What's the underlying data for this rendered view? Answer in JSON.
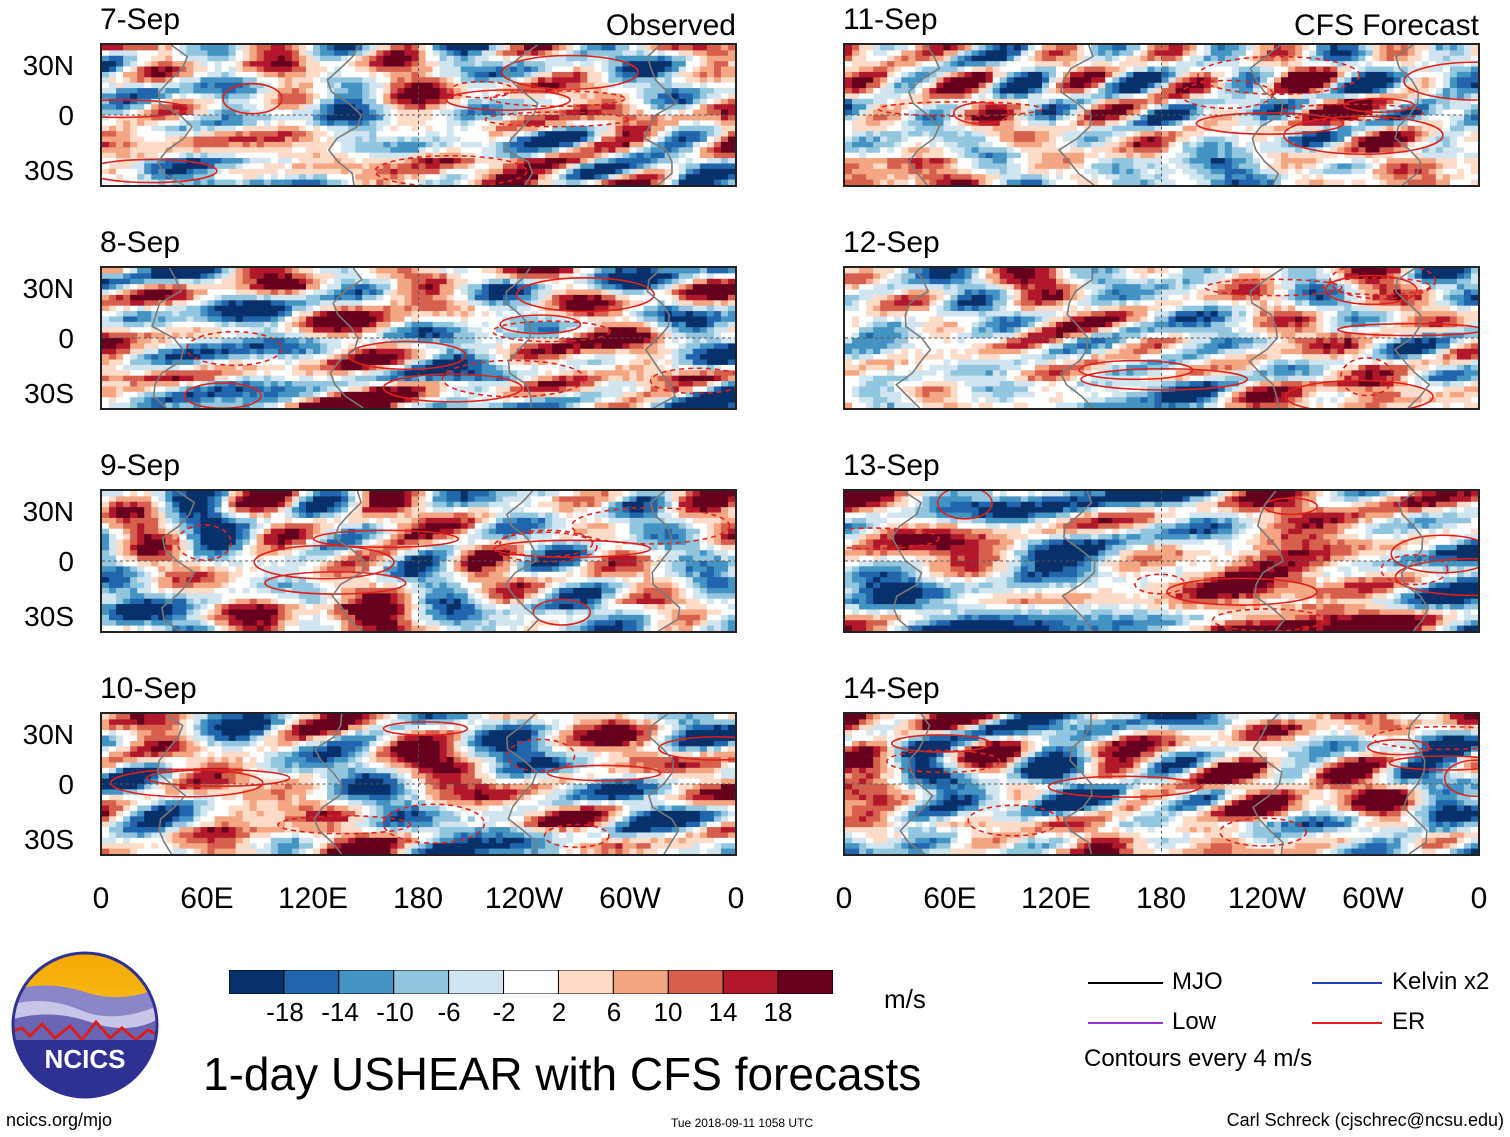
{
  "chart_data": {
    "type": "heatmap",
    "title": "1-day USHEAR with CFS forecasts",
    "variable": "USHEAR",
    "units": "m/s",
    "observed_label": "Observed",
    "forecast_label": "CFS Forecast",
    "lat_ticks": [
      "30N",
      "0",
      "30S"
    ],
    "lon_ticks": [
      "0",
      "60E",
      "120E",
      "180",
      "120W",
      "60W",
      "0"
    ],
    "lat_range": [
      -40,
      40
    ],
    "lon_range": [
      0,
      360
    ],
    "colorbar": {
      "levels": [
        "-18",
        "-14",
        "-10",
        "-6",
        "-2",
        "2",
        "6",
        "10",
        "14",
        "18"
      ],
      "colors": [
        "#08306b",
        "#2166ac",
        "#4393c3",
        "#92c5de",
        "#d1e5f0",
        "#ffffff",
        "#fddbc7",
        "#f4a582",
        "#d6604d",
        "#b2182b",
        "#67001f"
      ]
    },
    "panels": [
      {
        "date": "7-Sep",
        "type": "Observed"
      },
      {
        "date": "8-Sep",
        "type": "Observed"
      },
      {
        "date": "9-Sep",
        "type": "Observed"
      },
      {
        "date": "10-Sep",
        "type": "Observed"
      },
      {
        "date": "11-Sep",
        "type": "CFS Forecast"
      },
      {
        "date": "12-Sep",
        "type": "CFS Forecast"
      },
      {
        "date": "13-Sep",
        "type": "CFS Forecast"
      },
      {
        "date": "14-Sep",
        "type": "CFS Forecast"
      }
    ],
    "contour_legend": [
      {
        "label": "MJO",
        "color": "#000000"
      },
      {
        "label": "Kelvin x2",
        "color": "#1f3fbf"
      },
      {
        "label": "Low",
        "color": "#9b30d9"
      },
      {
        "label": "ER",
        "color": "#e0201a"
      }
    ],
    "contour_interval": "Contours every 4 m/s"
  },
  "branding": {
    "logo_text": "NCICS",
    "url": "ncics.org/mjo",
    "timestamp": "Tue 2018-09-11 1058 UTC",
    "author": "Carl Schreck (cjschrec@ncsu.edu)"
  }
}
